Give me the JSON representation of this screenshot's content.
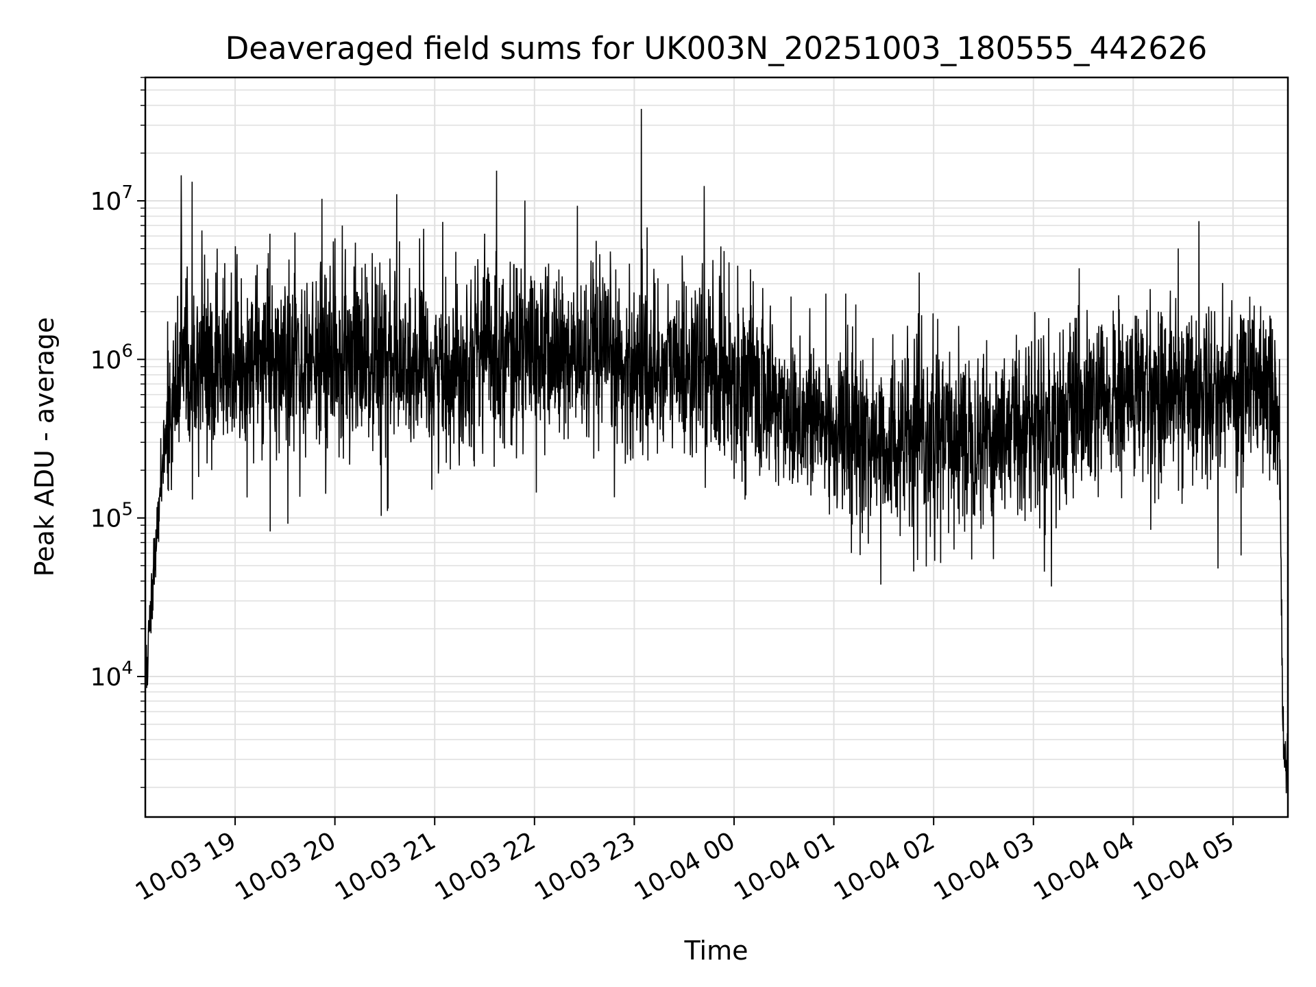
{
  "chart_data": {
    "type": "line",
    "title": "Deaveraged field sums for UK003N_20251003_180555_442626",
    "xlabel": "Time",
    "ylabel": "Peak ADU - average",
    "yscale": "log",
    "ylim": [
      1300,
      60000000
    ],
    "xlim_hours": [
      18.1,
      29.55
    ],
    "grid": true,
    "line_color": "#000000",
    "grid_color": "#e0e0e0",
    "x_ticks": [
      {
        "hour": 19,
        "label": "10-03 19"
      },
      {
        "hour": 20,
        "label": "10-03 20"
      },
      {
        "hour": 21,
        "label": "10-03 21"
      },
      {
        "hour": 22,
        "label": "10-03 22"
      },
      {
        "hour": 23,
        "label": "10-03 23"
      },
      {
        "hour": 24,
        "label": "10-04 00"
      },
      {
        "hour": 25,
        "label": "10-04 01"
      },
      {
        "hour": 26,
        "label": "10-04 02"
      },
      {
        "hour": 27,
        "label": "10-04 03"
      },
      {
        "hour": 28,
        "label": "10-04 04"
      },
      {
        "hour": 29,
        "label": "10-04 05"
      }
    ],
    "y_ticks": [
      {
        "value": 10000,
        "base": "10",
        "exp": "4"
      },
      {
        "value": 100000,
        "base": "10",
        "exp": "5"
      },
      {
        "value": 1000000,
        "base": "10",
        "exp": "6"
      },
      {
        "value": 10000000,
        "base": "10",
        "exp": "7"
      }
    ],
    "trend_anchors": {
      "hours": [
        18.1,
        18.13,
        18.2,
        18.3,
        18.45,
        19.0,
        20.0,
        21.0,
        21.5,
        22.0,
        23.0,
        23.5,
        24.0,
        24.5,
        25.0,
        25.5,
        26.0,
        26.5,
        27.0,
        27.5,
        28.0,
        28.5,
        29.0,
        29.35,
        29.42,
        29.47,
        29.5,
        29.55
      ],
      "values": [
        8000,
        20000,
        60000,
        400000,
        800000,
        900000,
        1000000,
        800000,
        1200000,
        1100000,
        900000,
        900000,
        800000,
        500000,
        350000,
        300000,
        300000,
        350000,
        400000,
        450000,
        600000,
        650000,
        650000,
        800000,
        600000,
        300000,
        3500,
        2500
      ]
    },
    "noise_sigma_log10": 0.28,
    "series_points": 4200,
    "spikes": [
      {
        "hour": 18.46,
        "value": 14500000
      },
      {
        "hour": 18.57,
        "value": 13200000
      },
      {
        "hour": 19.35,
        "value": 6200000
      },
      {
        "hour": 19.6,
        "value": 6300000
      },
      {
        "hour": 19.87,
        "value": 10300000
      },
      {
        "hour": 20.0,
        "value": 5800000
      },
      {
        "hour": 20.62,
        "value": 11000000
      },
      {
        "hour": 20.85,
        "value": 5800000
      },
      {
        "hour": 21.5,
        "value": 6200000
      },
      {
        "hour": 21.62,
        "value": 15500000
      },
      {
        "hour": 22.43,
        "value": 9300000
      },
      {
        "hour": 23.07,
        "value": 38000000
      },
      {
        "hour": 23.08,
        "value": 5000000
      },
      {
        "hour": 23.7,
        "value": 12400000
      },
      {
        "hour": 24.92,
        "value": 2600000
      },
      {
        "hour": 25.12,
        "value": 2600000
      },
      {
        "hour": 25.88,
        "value": 1900000
      },
      {
        "hour": 26.04,
        "value": 1800000
      },
      {
        "hour": 27.45,
        "value": 2200000
      },
      {
        "hour": 28.05,
        "value": 1800000
      }
    ],
    "dips": [
      {
        "hour": 19.53,
        "value": 92000
      },
      {
        "hour": 25.47,
        "value": 38000
      },
      {
        "hour": 25.8,
        "value": 46000
      },
      {
        "hour": 26.07,
        "value": 52000
      },
      {
        "hour": 26.6,
        "value": 55000
      },
      {
        "hour": 27.18,
        "value": 37000
      },
      {
        "hour": 28.85,
        "value": 48000
      },
      {
        "hour": 29.08,
        "value": 58000
      }
    ]
  }
}
